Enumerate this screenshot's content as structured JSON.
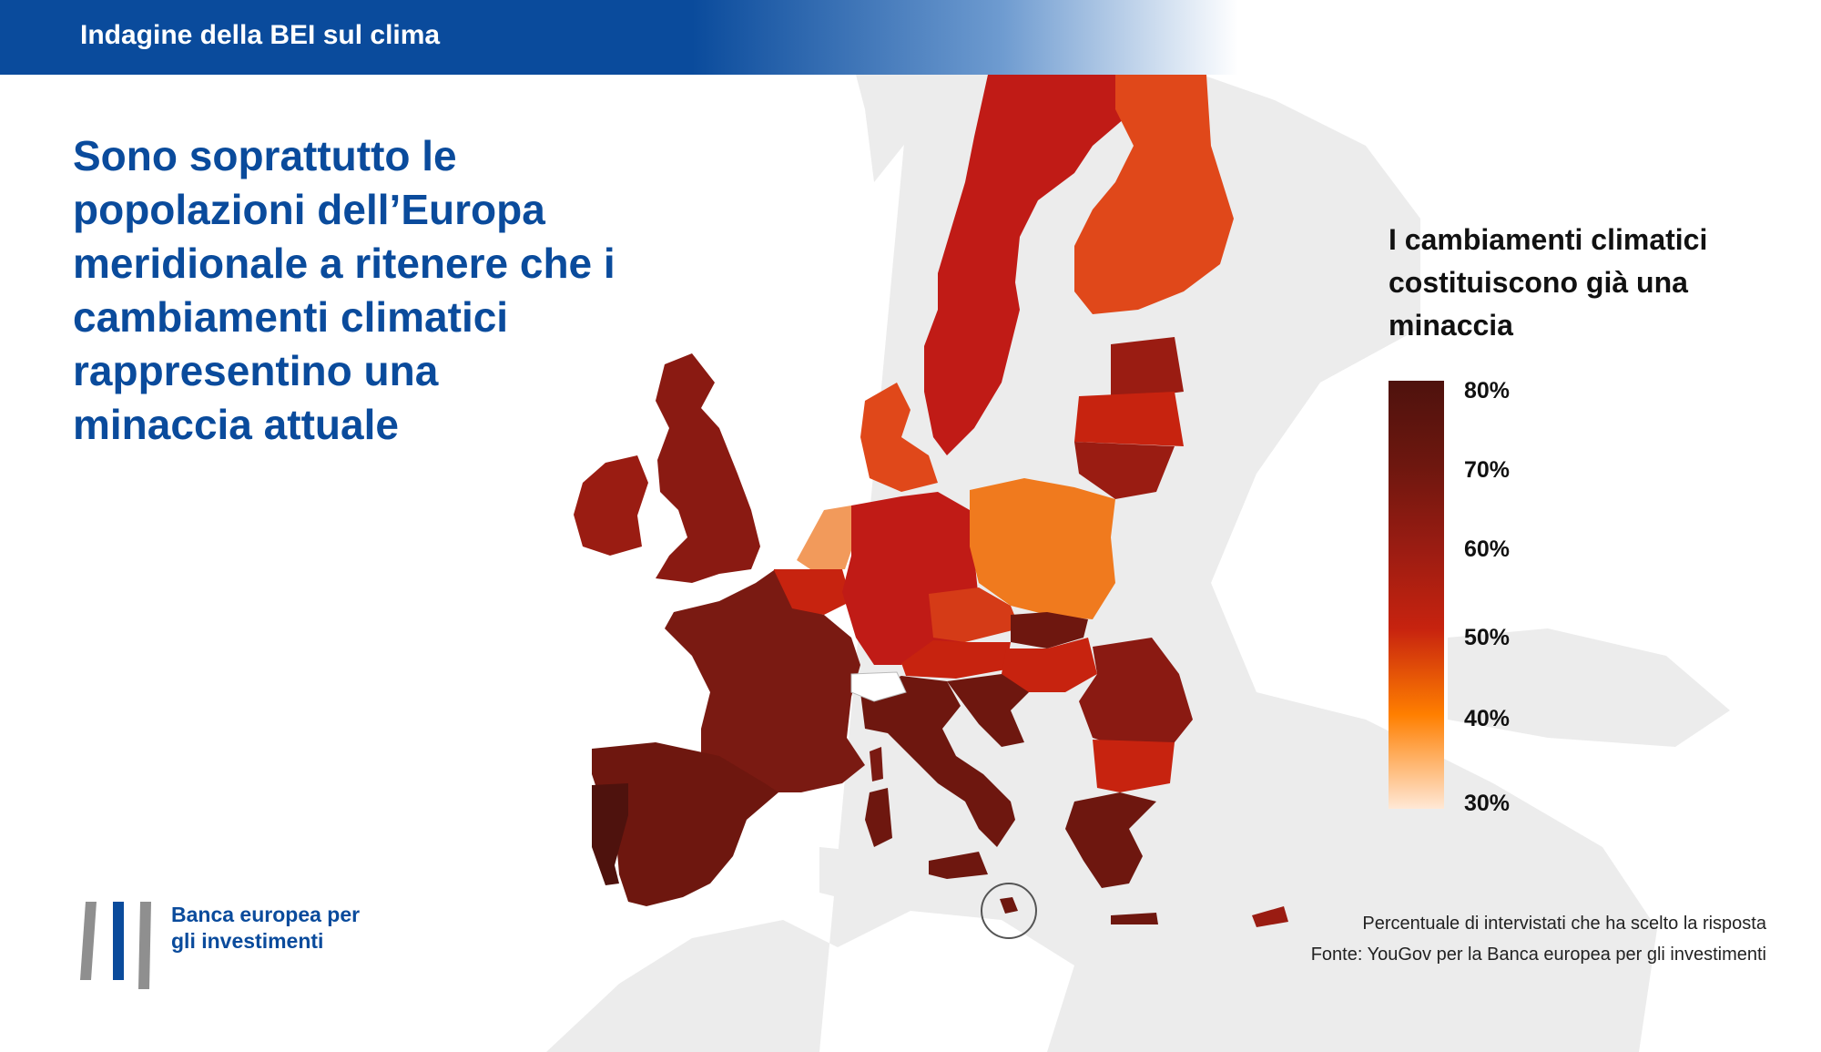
{
  "header": {
    "title": "Indagine della BEI sul clima"
  },
  "headline": "Sono soprattutto le popolazioni dell’Europa meridionale a ritenere che i cambiamenti climatici rappresentino una minaccia attuale",
  "legend": {
    "title": "I cambiamenti climatici costituiscono già una minaccia",
    "ticks": [
      "80%",
      "70%",
      "60%",
      "50%",
      "40%",
      "30%"
    ]
  },
  "footnotes": {
    "line1": "Percentuale di intervistati che ha scelto la risposta",
    "line2": "Fonte: YouGov per la Banca europea per gli investimenti"
  },
  "logo": {
    "text": "Banca europea per gli investimenti"
  },
  "colors": {
    "brand_blue": "#0a4b9c",
    "land_background": "#ececec",
    "scale_80": "#4e120d",
    "scale_70": "#6e170f",
    "scale_60": "#9a1c12",
    "scale_50": "#c7230f",
    "scale_40": "#ff7f00",
    "scale_30": "#ffe8d6"
  }
}
